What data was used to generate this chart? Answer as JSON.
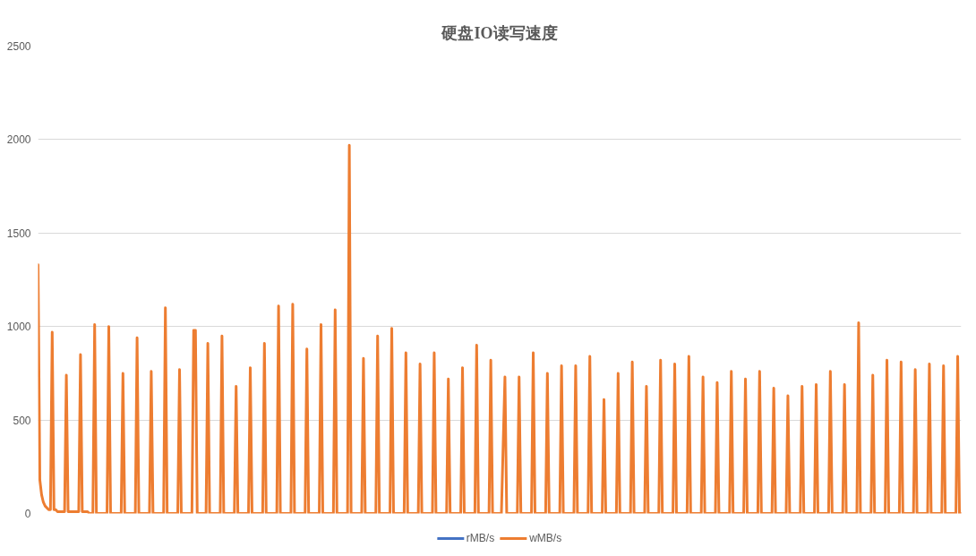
{
  "chart_data": {
    "type": "line",
    "title": "硬盘IO读写速度",
    "categories": [
      null,
      null,
      null,
      null,
      null,
      null,
      null,
      null,
      null,
      null,
      null,
      null,
      null,
      null,
      null,
      null,
      null,
      null,
      null,
      null,
      null,
      null,
      null,
      null,
      null,
      null,
      null,
      null,
      null,
      null,
      null,
      null,
      null,
      null,
      null,
      null,
      null,
      null,
      null,
      null,
      null,
      null,
      null,
      null,
      null,
      null,
      null,
      null,
      null,
      null,
      null,
      null,
      null,
      null,
      null,
      null,
      null,
      null,
      null,
      null,
      null,
      null,
      null,
      null,
      null,
      null,
      null,
      null,
      null,
      null,
      null,
      null,
      null,
      null,
      null,
      null,
      null,
      null,
      null,
      null,
      null,
      null,
      null,
      null,
      null,
      null,
      null,
      null,
      null,
      null,
      null,
      null,
      null,
      null,
      null,
      null,
      null,
      null,
      null,
      null,
      null,
      null,
      null,
      null,
      null,
      null,
      null,
      null,
      null,
      null,
      null,
      null,
      null,
      null,
      null,
      null,
      null,
      null,
      null,
      null,
      null,
      null,
      null,
      null,
      null,
      null,
      null,
      null,
      null,
      null,
      null,
      null,
      null,
      null,
      null,
      null,
      null,
      null,
      null,
      null,
      null,
      null,
      null,
      null,
      null,
      null,
      null,
      null,
      null,
      null,
      null,
      null,
      null,
      null,
      null,
      null,
      null,
      null,
      null,
      null,
      null,
      null,
      null,
      null,
      null,
      null,
      null,
      null,
      null,
      null,
      null,
      null,
      null,
      null,
      null,
      null,
      null,
      null,
      null,
      null,
      null,
      null,
      null,
      null,
      null,
      null,
      null,
      null,
      null,
      null,
      null,
      null,
      null,
      null,
      null,
      null,
      null,
      null,
      null,
      null,
      null,
      null,
      null,
      null,
      null,
      null,
      null,
      null,
      null,
      null,
      null,
      null,
      null,
      null,
      null,
      null,
      null,
      null,
      null,
      null,
      null,
      null,
      null,
      null,
      null,
      null,
      null,
      null,
      null,
      null,
      null,
      null,
      null,
      null,
      null,
      null,
      null,
      null,
      null,
      null,
      null,
      null,
      null,
      null,
      null,
      null,
      null,
      null,
      null,
      null,
      null,
      null,
      null,
      null,
      null,
      null,
      null,
      null,
      null,
      null,
      null,
      null,
      null,
      null,
      null,
      null,
      null,
      null,
      null,
      null,
      null,
      null,
      null,
      null,
      null,
      null,
      null,
      null,
      null,
      null,
      null,
      null,
      null,
      null,
      null,
      null,
      null,
      null,
      null,
      null,
      null,
      null,
      null,
      null,
      null,
      null,
      null,
      null,
      null,
      null,
      null,
      null,
      null,
      null,
      null,
      null,
      null,
      null,
      null,
      null,
      null,
      null,
      null,
      null,
      null,
      null,
      null,
      null,
      null,
      null,
      null,
      null,
      null,
      null,
      null,
      null,
      null,
      null,
      null,
      null,
      null,
      null,
      null,
      null,
      null,
      null,
      null,
      null,
      null,
      null,
      null,
      null,
      null,
      null,
      null,
      null,
      null,
      null,
      null,
      null,
      null,
      null,
      null,
      null,
      null,
      null,
      null,
      null,
      null,
      null,
      null,
      null,
      null,
      null,
      null,
      null,
      null,
      null,
      null,
      null,
      null,
      null,
      null,
      null,
      null,
      null,
      null,
      null,
      null,
      null,
      null,
      null,
      null,
      null,
      null,
      null,
      null,
      null,
      null,
      null,
      null,
      null,
      null,
      null,
      null,
      null,
      null,
      null,
      null,
      null,
      null,
      null,
      null,
      null,
      null,
      null,
      null,
      null,
      null,
      null,
      null,
      null,
      null,
      null,
      null,
      null,
      null,
      null,
      null,
      null,
      null,
      null,
      null,
      null,
      null,
      null,
      null,
      null,
      null,
      null,
      null,
      null,
      null,
      null,
      null,
      null,
      null,
      null,
      null,
      null,
      null,
      null,
      null,
      null,
      null,
      null,
      null,
      null,
      null,
      null,
      null,
      null,
      null,
      null,
      null,
      null,
      null,
      null,
      null,
      null,
      null,
      null,
      null,
      null,
      null,
      null,
      null,
      null,
      null,
      null,
      null,
      null,
      null,
      null,
      null,
      null,
      null,
      null,
      null,
      null,
      null,
      null,
      null,
      null,
      null,
      null,
      null,
      null,
      null,
      null,
      null,
      null,
      null,
      null,
      null,
      null,
      null,
      null,
      null,
      null,
      null,
      null,
      null,
      null,
      null,
      null,
      null,
      null,
      null,
      null,
      null,
      null,
      null,
      null,
      null,
      null,
      null,
      null,
      null,
      null,
      null,
      null,
      null
    ],
    "series": [
      {
        "name": "rMB/s",
        "color": "#4472c4",
        "values": [
          null,
          null,
          null,
          null,
          null,
          null,
          null,
          null,
          null,
          null,
          null,
          null,
          null,
          null,
          null,
          null,
          null,
          null,
          null,
          null,
          null,
          null,
          null,
          null,
          null,
          null,
          null,
          null,
          null,
          null,
          null,
          null,
          null,
          null,
          null,
          null,
          null,
          null,
          null,
          null,
          null,
          null,
          null,
          null,
          null,
          null,
          null,
          null,
          null,
          null,
          null,
          null,
          null,
          null,
          null,
          null,
          null,
          null,
          null,
          null,
          null,
          null,
          null,
          null,
          null,
          null,
          null,
          null,
          null,
          null,
          null,
          null,
          null,
          null,
          null,
          null,
          null,
          null,
          null,
          null,
          null,
          null,
          null,
          null,
          null,
          null,
          null,
          null,
          null,
          null,
          null,
          null,
          null,
          null,
          null,
          null,
          null,
          null,
          null,
          null,
          null,
          null,
          null,
          null,
          null,
          null,
          null,
          null,
          null,
          null,
          null,
          null,
          null,
          null,
          null,
          null,
          null,
          null,
          null,
          null,
          null,
          null,
          null,
          null,
          null,
          null,
          null,
          null,
          null,
          null,
          null,
          null,
          null,
          null,
          null,
          null,
          null,
          null,
          null,
          null,
          null,
          null,
          null,
          null,
          null,
          null,
          null,
          null,
          null,
          null,
          null,
          null,
          null,
          null,
          null,
          null,
          null,
          null,
          null,
          null,
          null,
          null,
          null,
          null,
          null,
          null,
          null,
          null,
          null,
          null,
          null,
          null,
          null,
          null,
          null,
          null,
          null,
          null,
          null,
          null,
          null,
          null,
          null,
          null,
          null,
          null,
          null,
          null,
          null,
          null,
          null,
          null,
          null,
          null,
          null,
          null,
          null,
          null,
          null,
          null,
          null,
          null,
          null,
          null,
          null,
          null,
          null,
          null,
          null,
          null,
          null,
          null,
          null,
          null,
          null,
          null,
          null,
          null,
          null,
          null,
          null,
          null,
          null,
          null,
          null,
          null,
          null,
          null,
          null,
          null,
          null,
          null,
          null,
          null,
          null,
          null,
          null,
          null,
          null,
          null,
          null,
          null,
          null,
          null,
          null,
          null,
          null,
          null,
          null,
          null,
          null,
          null,
          null,
          null,
          null,
          null,
          null,
          null,
          null,
          null,
          null,
          null,
          null,
          null,
          null,
          null,
          null,
          null,
          null,
          null,
          null,
          null,
          null,
          null,
          null,
          null,
          null,
          null,
          null,
          null,
          null,
          null,
          null,
          null,
          null,
          null,
          null,
          null,
          null,
          null,
          null,
          null,
          null,
          null,
          null,
          null,
          null,
          null,
          null,
          null,
          null,
          null,
          null,
          null,
          null,
          null,
          null,
          null,
          null,
          null,
          null,
          null,
          null,
          null,
          null,
          null,
          null,
          null,
          null,
          null,
          null,
          null,
          null,
          null,
          null,
          null,
          null,
          null,
          null,
          null,
          null,
          null,
          null,
          null,
          null,
          null,
          null,
          null,
          null,
          null,
          null,
          null,
          null,
          null,
          null,
          null,
          null,
          null,
          null,
          null,
          null,
          null,
          null,
          null,
          null,
          null,
          null,
          null,
          null,
          null,
          null,
          null,
          null,
          null,
          null,
          null,
          null,
          null,
          null,
          null,
          null,
          null,
          null,
          null,
          null,
          null,
          null,
          null,
          null,
          null,
          null,
          null,
          null,
          null,
          null,
          null,
          null,
          null,
          null,
          null,
          null,
          null,
          null,
          null,
          null,
          null,
          null,
          null,
          null,
          null,
          null,
          null,
          null,
          null,
          null,
          null,
          null,
          null,
          null,
          null,
          null,
          null,
          null,
          null,
          null,
          null,
          null,
          null,
          null,
          null,
          null,
          null,
          null,
          null,
          null,
          null,
          null,
          null,
          null,
          null,
          null,
          null,
          null,
          null,
          null,
          null,
          null,
          null,
          null,
          null,
          null,
          null,
          null,
          null,
          null,
          null,
          null,
          null,
          null,
          null,
          null,
          null,
          null,
          null,
          null,
          null,
          null,
          null,
          null,
          null,
          null,
          null,
          null,
          null,
          null,
          null,
          null,
          null,
          null,
          null,
          null,
          null,
          null,
          null,
          null,
          null,
          null,
          null,
          null,
          null,
          null,
          null,
          null,
          null,
          null,
          null,
          null,
          null,
          null,
          null,
          null,
          null,
          null,
          null,
          null,
          null,
          null,
          null,
          null,
          null,
          null,
          null,
          null,
          null,
          null,
          null,
          null,
          null,
          null,
          null,
          null,
          null,
          null,
          null,
          null,
          null,
          null,
          null,
          null,
          null,
          null,
          null,
          null
        ]
      },
      {
        "name": "wMB/s",
        "color": "#ed7d31",
        "values": [
          1330,
          180,
          100,
          60,
          40,
          30,
          20,
          20,
          970,
          20,
          20,
          10,
          10,
          10,
          10,
          10,
          740,
          10,
          10,
          10,
          10,
          10,
          10,
          10,
          850,
          10,
          10,
          10,
          10,
          0,
          0,
          0,
          1010,
          0,
          0,
          0,
          0,
          0,
          0,
          0,
          1000,
          0,
          0,
          0,
          0,
          0,
          0,
          0,
          750,
          0,
          0,
          0,
          0,
          0,
          0,
          0,
          940,
          0,
          0,
          0,
          0,
          0,
          0,
          0,
          760,
          0,
          0,
          0,
          0,
          0,
          0,
          0,
          1100,
          0,
          0,
          0,
          0,
          0,
          0,
          0,
          770,
          0,
          0,
          0,
          0,
          0,
          0,
          0,
          980,
          980,
          0,
          0,
          0,
          0,
          0,
          0,
          910,
          0,
          0,
          0,
          0,
          0,
          0,
          0,
          950,
          0,
          0,
          0,
          0,
          0,
          0,
          0,
          680,
          0,
          0,
          0,
          0,
          0,
          0,
          0,
          780,
          0,
          0,
          0,
          0,
          0,
          0,
          0,
          910,
          0,
          0,
          0,
          0,
          0,
          0,
          0,
          1110,
          0,
          0,
          0,
          0,
          0,
          0,
          0,
          1120,
          0,
          0,
          0,
          0,
          0,
          0,
          0,
          880,
          0,
          0,
          0,
          0,
          0,
          0,
          0,
          1010,
          0,
          0,
          0,
          0,
          0,
          0,
          0,
          1090,
          0,
          0,
          0,
          0,
          0,
          0,
          0,
          1970,
          0,
          0,
          0,
          0,
          0,
          0,
          0,
          830,
          0,
          0,
          0,
          0,
          0,
          0,
          0,
          950,
          0,
          0,
          0,
          0,
          0,
          0,
          0,
          990,
          0,
          0,
          0,
          0,
          0,
          0,
          0,
          860,
          0,
          0,
          0,
          0,
          0,
          0,
          0,
          800,
          0,
          0,
          0,
          0,
          0,
          0,
          0,
          860,
          0,
          0,
          0,
          0,
          0,
          0,
          0,
          720,
          0,
          0,
          0,
          0,
          0,
          0,
          0,
          780,
          0,
          0,
          0,
          0,
          0,
          0,
          0,
          900,
          0,
          0,
          0,
          0,
          0,
          0,
          0,
          820,
          0,
          0,
          0,
          0,
          0,
          0,
          370,
          730,
          0,
          0,
          0,
          0,
          0,
          0,
          0,
          730,
          0,
          0,
          0,
          0,
          0,
          0,
          0,
          860,
          0,
          0,
          0,
          0,
          0,
          0,
          0,
          750,
          0,
          0,
          0,
          0,
          0,
          0,
          0,
          790,
          0,
          0,
          0,
          0,
          0,
          0,
          0,
          790,
          0,
          0,
          0,
          0,
          0,
          0,
          0,
          840,
          0,
          0,
          0,
          0,
          0,
          0,
          0,
          610,
          0,
          0,
          0,
          0,
          0,
          0,
          0,
          750,
          0,
          0,
          0,
          0,
          0,
          0,
          0,
          810,
          0,
          0,
          0,
          0,
          0,
          0,
          0,
          680,
          0,
          0,
          0,
          0,
          0,
          0,
          0,
          820,
          0,
          0,
          0,
          0,
          0,
          0,
          0,
          800,
          0,
          0,
          0,
          0,
          0,
          0,
          0,
          840,
          0,
          0,
          0,
          0,
          0,
          0,
          0,
          730,
          0,
          0,
          0,
          0,
          0,
          0,
          0,
          700,
          0,
          0,
          0,
          0,
          0,
          0,
          0,
          760,
          0,
          0,
          0,
          0,
          0,
          0,
          0,
          720,
          0,
          0,
          0,
          0,
          0,
          0,
          0,
          760,
          0,
          0,
          0,
          0,
          0,
          0,
          0,
          670,
          0,
          0,
          0,
          0,
          0,
          0,
          0,
          630,
          0,
          0,
          0,
          0,
          0,
          0,
          0,
          680,
          0,
          0,
          0,
          0,
          0,
          0,
          0,
          690,
          0,
          0,
          0,
          0,
          0,
          0,
          0,
          760,
          0,
          0,
          0,
          0,
          0,
          0,
          0,
          690,
          0,
          0,
          0,
          0,
          0,
          0,
          0,
          1020,
          0,
          0,
          0,
          0,
          0,
          0,
          0,
          740,
          0,
          0,
          0,
          0,
          0,
          0,
          0,
          820,
          0,
          0,
          0,
          0,
          0,
          0,
          0,
          810,
          0,
          0,
          0,
          0,
          0,
          0,
          0,
          770,
          0,
          0,
          0,
          0,
          0,
          0,
          0,
          800,
          0,
          0,
          0,
          0,
          0,
          0,
          0,
          790,
          0,
          0,
          0,
          0,
          0,
          0,
          0,
          840,
          0,
          0
        ]
      }
    ],
    "ylim": [
      0,
      2500
    ],
    "yticks": [
      0,
      500,
      1000,
      1500,
      2000,
      2500
    ],
    "grid": "y",
    "legend": "bottom"
  }
}
